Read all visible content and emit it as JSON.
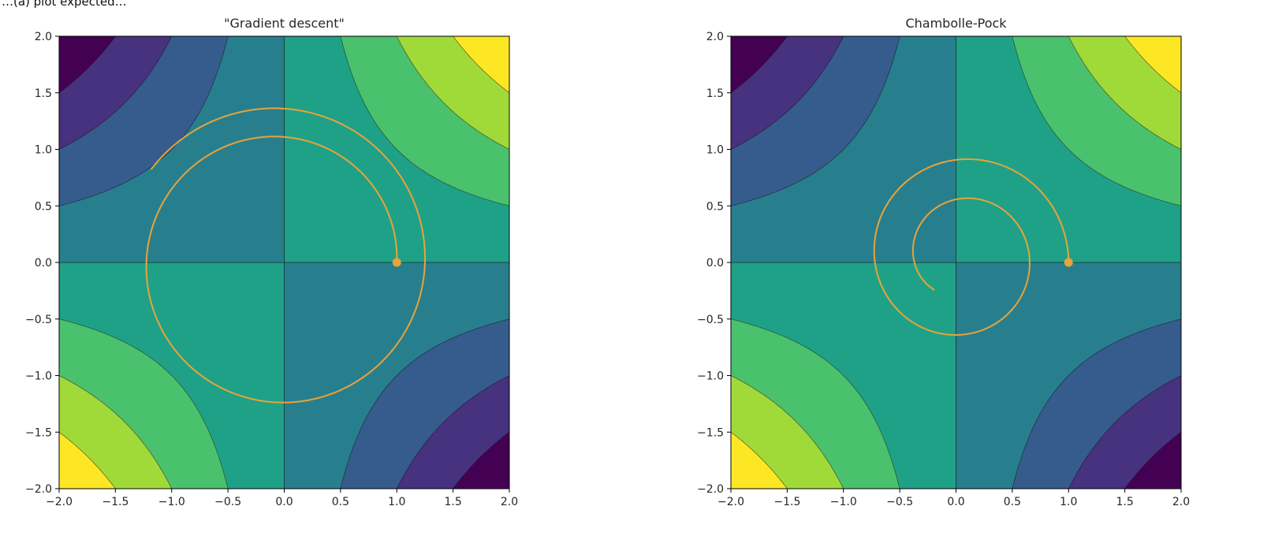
{
  "header_fragment": "…(a) plot expected…",
  "chart_data": [
    {
      "type": "contour",
      "title": "\"Gradient descent\"",
      "xlim": [
        -2,
        2
      ],
      "ylim": [
        -2,
        2
      ],
      "xticks": [
        "−2.0",
        "−1.5",
        "−1.0",
        "−0.5",
        "0.0",
        "0.5",
        "1.0",
        "1.5",
        "2.0"
      ],
      "yticks": [
        "−2.0",
        "−1.5",
        "−1.0",
        "−0.5",
        "0.0",
        "0.5",
        "1.0",
        "1.5",
        "2.0"
      ],
      "function": "x*y",
      "levels": [
        -4,
        -3,
        -2,
        -1,
        0,
        1,
        2,
        3,
        4
      ],
      "start": [
        1.0,
        0.0
      ],
      "trajectory": {
        "type": "outward spiral (counter-clockwise)",
        "center": [
          -0.05,
          0.0
        ],
        "r_start": 1.05,
        "r_end": 1.4,
        "turns": 1.4
      },
      "path_color": "#e8a33a"
    },
    {
      "type": "contour",
      "title": "Chambolle-Pock",
      "xlim": [
        -2,
        2
      ],
      "ylim": [
        -2,
        2
      ],
      "xticks": [
        "−2.0",
        "−1.5",
        "−1.0",
        "−0.5",
        "0.0",
        "0.5",
        "1.0",
        "1.5",
        "2.0"
      ],
      "yticks": [
        "−2.0",
        "−1.5",
        "−1.0",
        "−0.5",
        "0.0",
        "0.5",
        "1.0",
        "1.5",
        "2.0"
      ],
      "function": "x*y",
      "levels": [
        -4,
        -3,
        -2,
        -1,
        0,
        1,
        2,
        3,
        4
      ],
      "start": [
        1.0,
        0.0
      ],
      "trajectory": {
        "type": "inward spiral (counter-clockwise)",
        "center": [
          0.05,
          0.05
        ],
        "r_start": 0.9,
        "r_end": 0.38,
        "turns": 1.65
      },
      "path_color": "#e8a33a"
    }
  ],
  "colors": [
    "#440154",
    "#46327e",
    "#365c8d",
    "#277f8e",
    "#1fa187",
    "#4ac16d",
    "#a0da39",
    "#fde725"
  ]
}
